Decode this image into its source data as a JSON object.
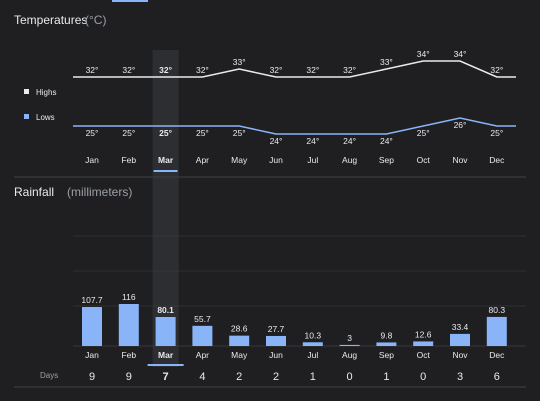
{
  "colors": {
    "background": "#1f1f22",
    "highs_line": "#e8eaed",
    "lows_line": "#8ab4f8",
    "bar": "#8ab4f8",
    "selected_band": "#2d2e31",
    "text": "#e8eaed",
    "muted": "#9aa0a6",
    "grid": "#3c4043"
  },
  "temperatures": {
    "title": "Temperatures",
    "unit": "(°C)"
  },
  "rainfall": {
    "title": "Rainfall",
    "unit": "(millimeters)"
  },
  "days_label": "Days",
  "selected_month": "Mar",
  "chart_data": [
    {
      "type": "line",
      "title": "Temperatures (°C)",
      "categories": [
        "Jan",
        "Feb",
        "Mar",
        "Apr",
        "May",
        "Jun",
        "Jul",
        "Aug",
        "Sep",
        "Oct",
        "Nov",
        "Dec"
      ],
      "series": [
        {
          "name": "Highs",
          "values": [
            32,
            32,
            32,
            32,
            33,
            32,
            32,
            32,
            33,
            34,
            34,
            32
          ],
          "labels": [
            "32°",
            "32°",
            "32°",
            "32°",
            "33°",
            "32°",
            "32°",
            "32°",
            "33°",
            "34°",
            "34°",
            "32°"
          ]
        },
        {
          "name": "Lows",
          "values": [
            25,
            25,
            25,
            25,
            25,
            24,
            24,
            24,
            24,
            25,
            26,
            25
          ],
          "labels": [
            "25°",
            "25°",
            "25°",
            "25°",
            "25°",
            "24°",
            "24°",
            "24°",
            "24°",
            "25°",
            "26°",
            "25°"
          ]
        }
      ],
      "legend": "left"
    },
    {
      "type": "bar",
      "title": "Rainfall (millimeters)",
      "categories": [
        "Jan",
        "Feb",
        "Mar",
        "Apr",
        "May",
        "Jun",
        "Jul",
        "Aug",
        "Sep",
        "Oct",
        "Nov",
        "Dec"
      ],
      "values": [
        107.7,
        116,
        80.1,
        55.7,
        28.6,
        27.7,
        10.3,
        3,
        9.8,
        12.6,
        33.4,
        80.3
      ],
      "value_labels": [
        "107.7",
        "116",
        "80.1",
        "55.7",
        "28.6",
        "27.7",
        "10.3",
        "3",
        "9.8",
        "12.6",
        "33.4",
        "80.3"
      ],
      "days": [
        9,
        9,
        7,
        4,
        2,
        2,
        1,
        0,
        1,
        0,
        3,
        6
      ],
      "grid": true
    }
  ]
}
